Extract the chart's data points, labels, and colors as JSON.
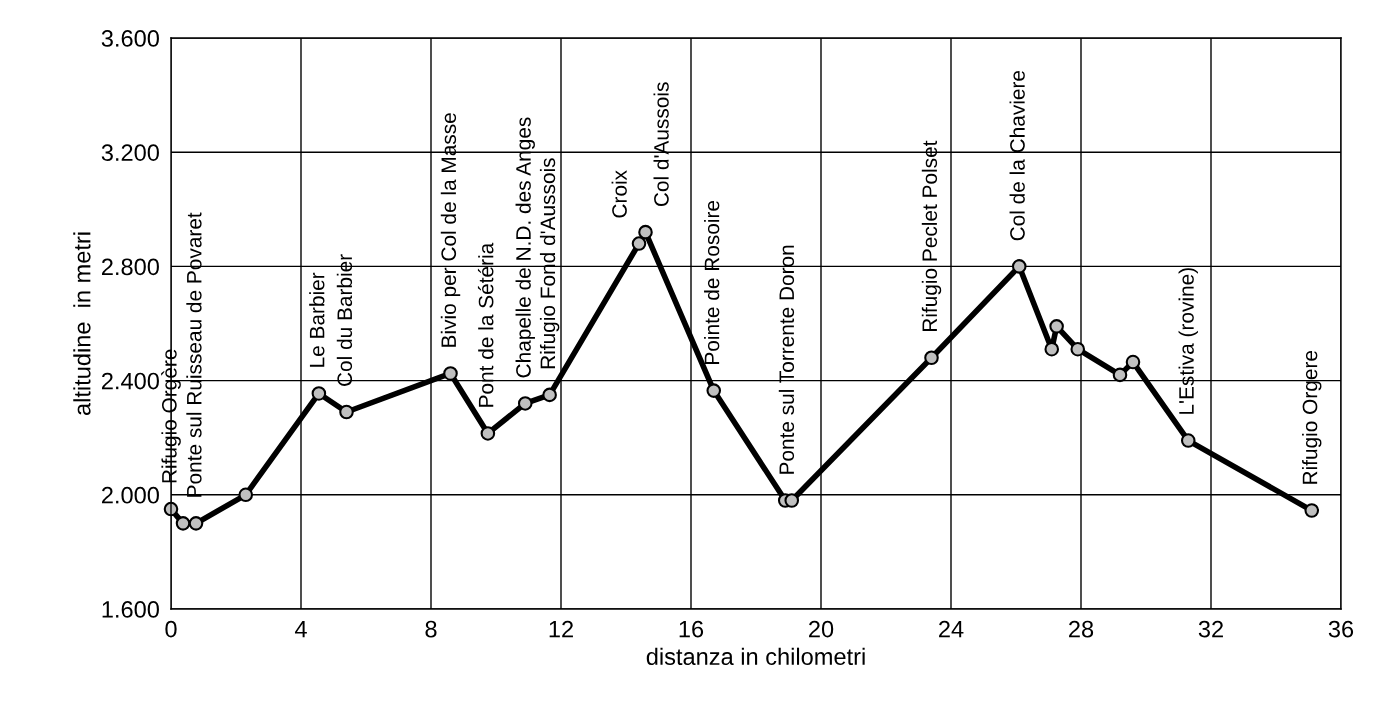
{
  "chart_data": {
    "type": "line",
    "xlabel": "distanza in chilometri",
    "ylabel": "altitudine  in metri",
    "x": [
      0,
      0.37,
      0.77,
      2.3,
      4.55,
      5.4,
      8.6,
      9.75,
      10.9,
      11.65,
      14.4,
      14.6,
      16.7,
      18.9,
      19.1,
      23.4,
      26.1,
      27.1,
      27.25,
      27.9,
      29.2,
      29.6,
      31.3,
      35.1
    ],
    "series": [
      {
        "color": "#000000",
        "values": [
          1950,
          1900,
          1900,
          2000,
          2355,
          2290,
          2425,
          2215,
          2320,
          2350,
          2880,
          2920,
          2365,
          1980,
          1980,
          2480,
          2800,
          2510,
          2590,
          2510,
          2420,
          2465,
          2190,
          1945
        ]
      }
    ],
    "marker": "circle",
    "line_style": "solid",
    "grid": true,
    "xlim": [
      0,
      36
    ],
    "xticks": [
      0,
      4,
      8,
      12,
      16,
      20,
      24,
      28,
      32,
      36
    ],
    "ylim": [
      1600,
      3600
    ],
    "yticks": [
      {
        "value": 1600,
        "label": "1.600"
      },
      {
        "value": 2000,
        "label": "2.000"
      },
      {
        "value": 2400,
        "label": "2.400"
      },
      {
        "value": 2800,
        "label": "2.800"
      },
      {
        "value": 3200,
        "label": "3.200"
      },
      {
        "value": 3600,
        "label": "3.600"
      }
    ],
    "annotations": [
      {
        "text": "Rifugio Orgère",
        "x": 0,
        "y": 1950
      },
      {
        "text": "Ponte sul Ruisseau de Povaret",
        "x": 0.77,
        "y": 1900
      },
      {
        "text": "Le Barbier",
        "x": 4.55,
        "y": 2355
      },
      {
        "text": "Col du Barbier",
        "x": 5.4,
        "y": 2290
      },
      {
        "text": "Bivio per Col de la Masse",
        "x": 8.6,
        "y": 2425
      },
      {
        "text": "Pont de la Sétéria",
        "x": 9.75,
        "y": 2215
      },
      {
        "text": "Chapelle de N.D. des Anges",
        "x": 10.9,
        "y": 2320
      },
      {
        "text": "Rifugio Fond d'Aussois",
        "x": 11.65,
        "y": 2350
      },
      {
        "text": "Croix",
        "x": 14.4,
        "y": 2880
      },
      {
        "text": "Col d'Aussois",
        "x": 14.6,
        "y": 2920
      },
      {
        "text": "Pointe de Rosoire",
        "x": 16.7,
        "y": 2365
      },
      {
        "text": "Ponte sul Torrente Doron",
        "x": 19.0,
        "y": 1980
      },
      {
        "text": "Rifugio Peclet Polset",
        "x": 23.4,
        "y": 2480
      },
      {
        "text": "Col de la Chaviere",
        "x": 26.1,
        "y": 2800
      },
      {
        "text": "L'Estiva (rovine)",
        "x": 31.3,
        "y": 2190
      },
      {
        "text": "Rifugio Orgere",
        "x": 35.1,
        "y": 1945
      }
    ]
  }
}
